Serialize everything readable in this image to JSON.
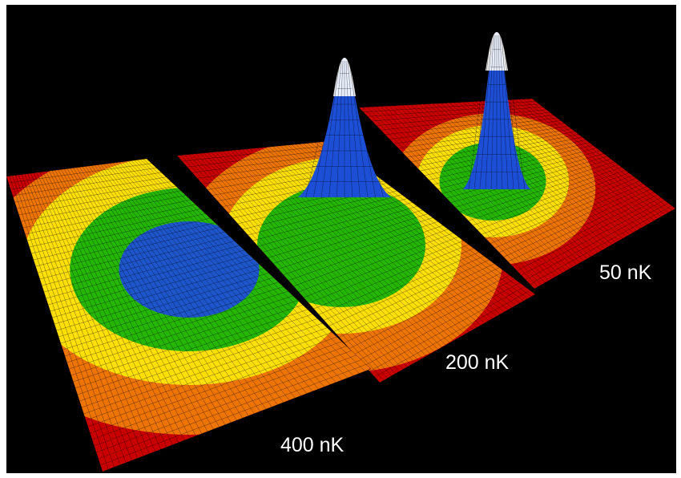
{
  "chart_data": {
    "type": "surface",
    "panels": [
      {
        "label": "400 nK",
        "peak_height": 0.35,
        "peak_width": "broad",
        "color": "#1d4fd6"
      },
      {
        "label": "200 nK",
        "peak_height": 0.8,
        "peak_width": "medium",
        "color": "#ffffff"
      },
      {
        "label": "50 nK",
        "peak_height": 1.0,
        "peak_width": "narrow",
        "color": "#ffffff"
      }
    ],
    "colormap": [
      "#c80000",
      "#f07a00",
      "#ffe600",
      "#19b400",
      "#1d4fd6",
      "#ffffff"
    ],
    "background": "#000000",
    "grid": true
  }
}
